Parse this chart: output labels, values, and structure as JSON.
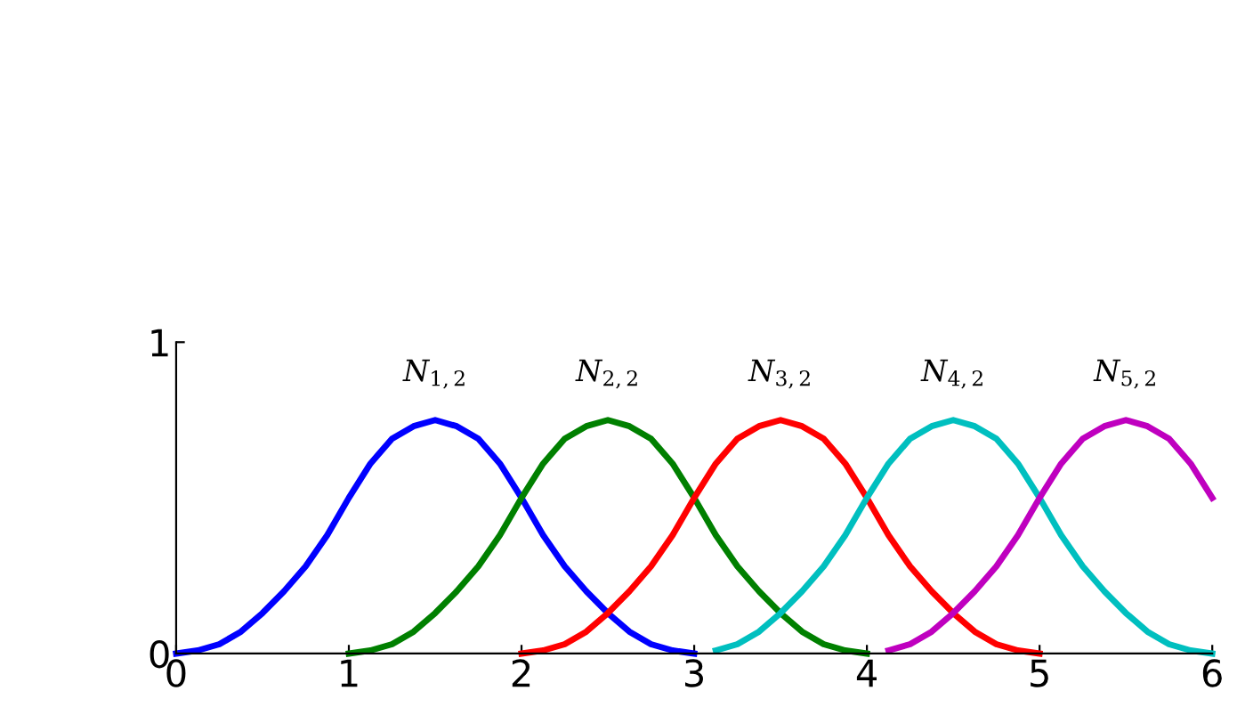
{
  "chart_data": {
    "type": "line",
    "xlim": [
      0,
      6
    ],
    "ylim": [
      0,
      1
    ],
    "xticks": [
      0,
      1,
      2,
      3,
      4,
      5,
      6
    ],
    "yticks": [
      0,
      1
    ],
    "grid": false,
    "legend": false,
    "marker": "none",
    "line_style": "solid",
    "series": [
      {
        "name": "N$_{1,2}$",
        "color": "#0000ff",
        "x": [
          0,
          0.125,
          0.25,
          0.375,
          0.5,
          0.625,
          0.75,
          0.875,
          1,
          1.125,
          1.25,
          1.375,
          1.5,
          1.625,
          1.75,
          1.875,
          2,
          2.125,
          2.25,
          2.375,
          2.5,
          2.625,
          2.75,
          2.875,
          3
        ],
        "values": [
          0,
          0.01,
          0.03,
          0.07,
          0.13,
          0.2,
          0.28,
          0.38,
          0.5,
          0.61,
          0.69,
          0.73,
          0.75,
          0.73,
          0.69,
          0.61,
          0.5,
          0.38,
          0.28,
          0.2,
          0.13,
          0.07,
          0.03,
          0.01,
          0
        ]
      },
      {
        "name": "N$_{2,2}$",
        "color": "#008000",
        "x": [
          1,
          1.125,
          1.25,
          1.375,
          1.5,
          1.625,
          1.75,
          1.875,
          2,
          2.125,
          2.25,
          2.375,
          2.5,
          2.625,
          2.75,
          2.875,
          3,
          3.125,
          3.25,
          3.375,
          3.5,
          3.625,
          3.75,
          3.875,
          4
        ],
        "values": [
          0,
          0.01,
          0.03,
          0.07,
          0.13,
          0.2,
          0.28,
          0.38,
          0.5,
          0.61,
          0.69,
          0.73,
          0.75,
          0.73,
          0.69,
          0.61,
          0.5,
          0.38,
          0.28,
          0.2,
          0.13,
          0.07,
          0.03,
          0.01,
          0
        ]
      },
      {
        "name": "N$_{3,2}$",
        "color": "#ff0000",
        "x": [
          2,
          2.125,
          2.25,
          2.375,
          2.5,
          2.625,
          2.75,
          2.875,
          3,
          3.125,
          3.25,
          3.375,
          3.5,
          3.625,
          3.75,
          3.875,
          4,
          4.125,
          4.25,
          4.375,
          4.5,
          4.625,
          4.75,
          4.875,
          5
        ],
        "values": [
          0,
          0.01,
          0.03,
          0.07,
          0.13,
          0.2,
          0.28,
          0.38,
          0.5,
          0.61,
          0.69,
          0.73,
          0.75,
          0.73,
          0.69,
          0.61,
          0.5,
          0.38,
          0.28,
          0.2,
          0.13,
          0.07,
          0.03,
          0.01,
          0
        ]
      },
      {
        "name": "N$_{4,2}$",
        "color": "#00bfbf",
        "x": [
          3.125,
          3.25,
          3.375,
          3.5,
          3.625,
          3.75,
          3.875,
          4,
          4.125,
          4.25,
          4.375,
          4.5,
          4.625,
          4.75,
          4.875,
          5,
          5.125,
          5.25,
          5.375,
          5.5,
          5.625,
          5.75,
          5.875,
          6
        ],
        "values": [
          0.01,
          0.03,
          0.07,
          0.13,
          0.2,
          0.28,
          0.38,
          0.5,
          0.61,
          0.69,
          0.73,
          0.75,
          0.73,
          0.69,
          0.61,
          0.5,
          0.38,
          0.28,
          0.2,
          0.13,
          0.07,
          0.03,
          0.01,
          0
        ]
      },
      {
        "name": "N$_{5,2}$",
        "color": "#bf00bf",
        "x": [
          4.125,
          4.25,
          4.375,
          4.5,
          4.625,
          4.75,
          4.875,
          5,
          5.125,
          5.25,
          5.375,
          5.5,
          5.625,
          5.75,
          5.875,
          6
        ],
        "values": [
          0.01,
          0.03,
          0.07,
          0.13,
          0.2,
          0.28,
          0.38,
          0.5,
          0.61,
          0.69,
          0.73,
          0.75,
          0.73,
          0.69,
          0.61,
          0.5
        ]
      }
    ]
  }
}
